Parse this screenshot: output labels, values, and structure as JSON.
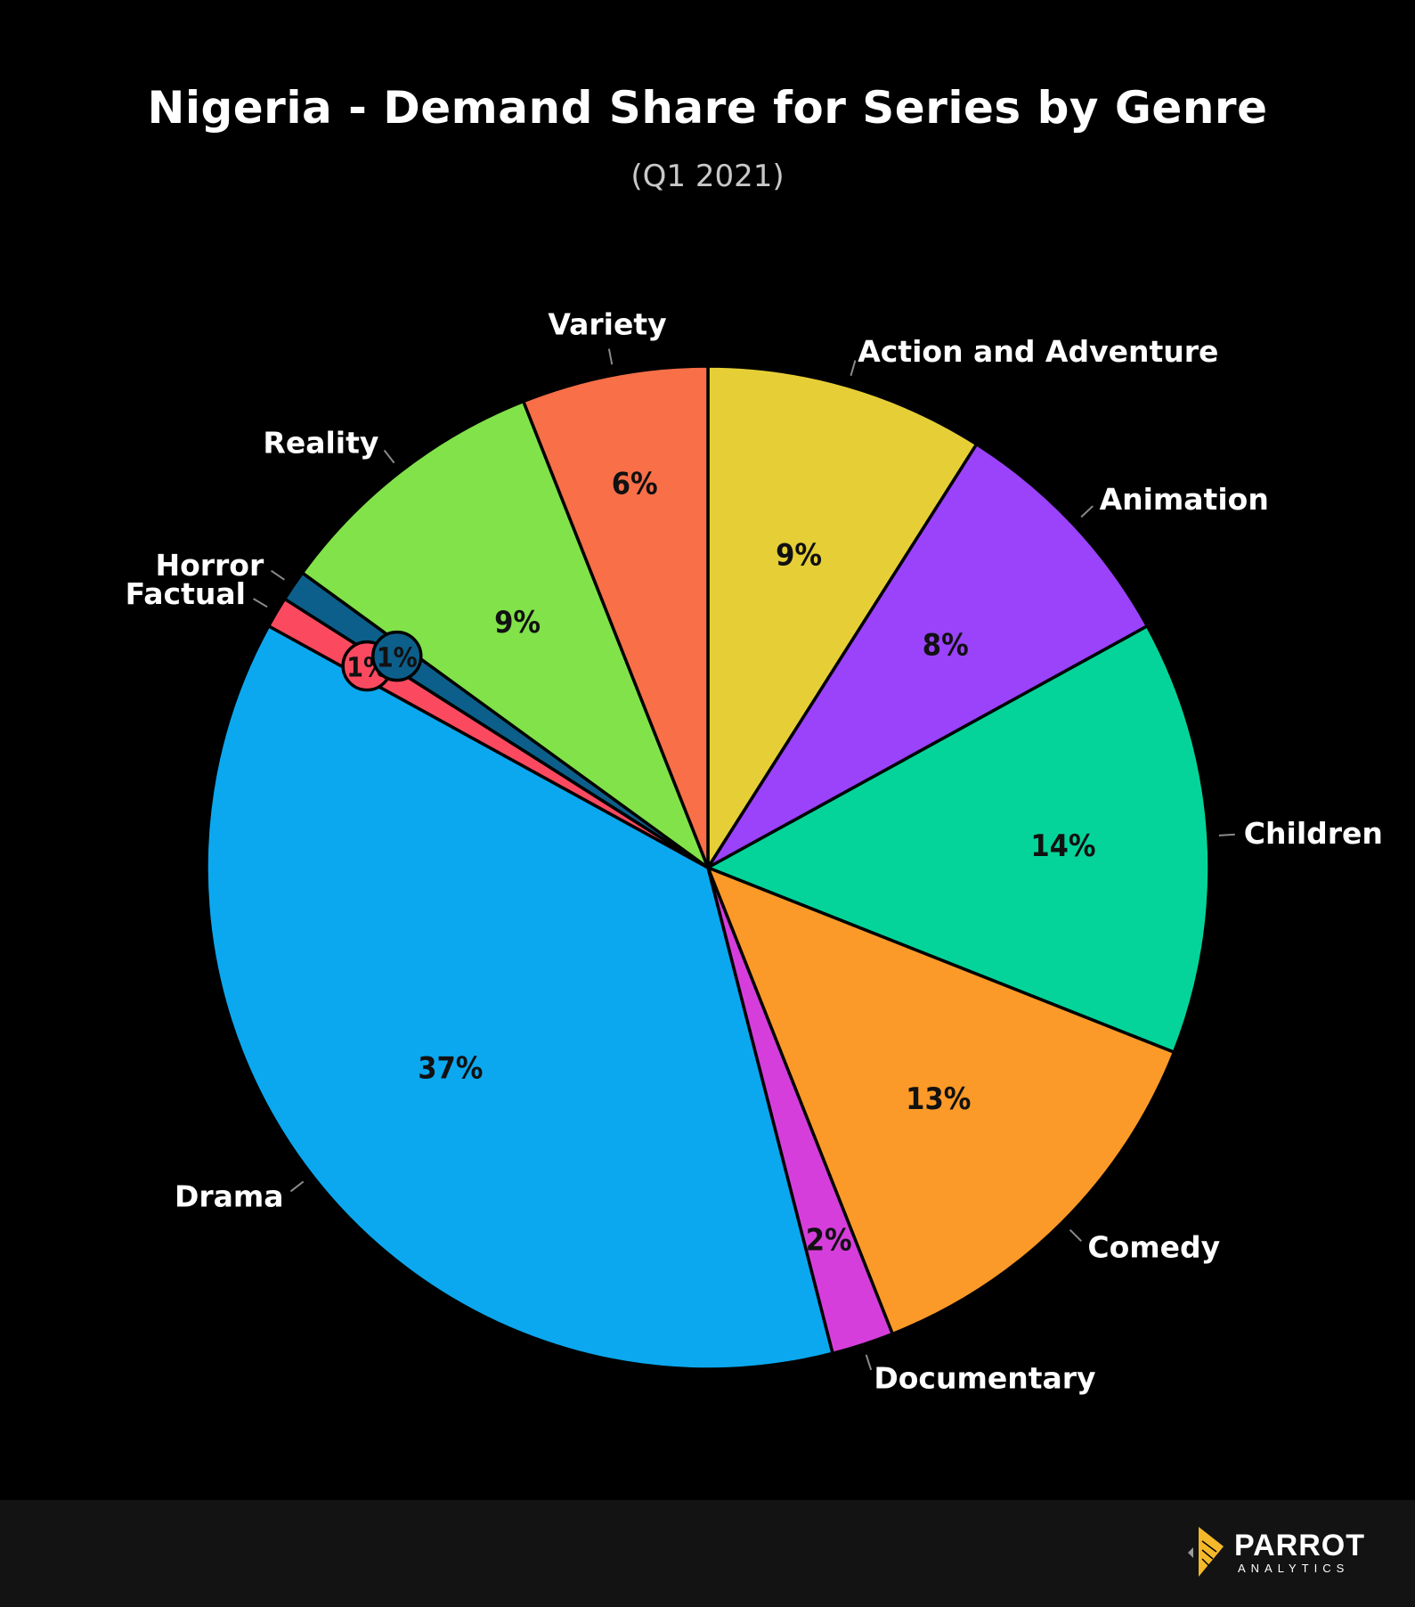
{
  "chart_data": {
    "type": "pie",
    "title": "Nigeria - Demand Share for Series by Genre",
    "subtitle": "(Q1 2021)",
    "slices": [
      {
        "label": "Action and Adventure",
        "value": 9,
        "value_label": "9%",
        "color": "#e6cf36"
      },
      {
        "label": "Animation",
        "value": 8,
        "value_label": "8%",
        "color": "#9b42fb"
      },
      {
        "label": "Children",
        "value": 14,
        "value_label": "14%",
        "color": "#05d49a"
      },
      {
        "label": "Comedy",
        "value": 13,
        "value_label": "13%",
        "color": "#fb9a28"
      },
      {
        "label": "Documentary",
        "value": 2,
        "value_label": "2%",
        "color": "#d63edc"
      },
      {
        "label": "Drama",
        "value": 37,
        "value_label": "37%",
        "color": "#0ba8ef"
      },
      {
        "label": "Factual",
        "value": 1,
        "value_label": "1%",
        "color": "#fb4a60"
      },
      {
        "label": "Horror",
        "value": 1,
        "value_label": "1%",
        "color": "#0c5f8a"
      },
      {
        "label": "Reality",
        "value": 9,
        "value_label": "9%",
        "color": "#82e24a"
      },
      {
        "label": "Variety",
        "value": 6,
        "value_label": "6%",
        "color": "#f86f48"
      }
    ],
    "start_angle": "12 o'clock",
    "direction": "clockwise",
    "legend": "none"
  },
  "branding": {
    "logo_word": "PARROT",
    "logo_sub": "ANALYTICS",
    "logo_color": "#f5b82a"
  }
}
